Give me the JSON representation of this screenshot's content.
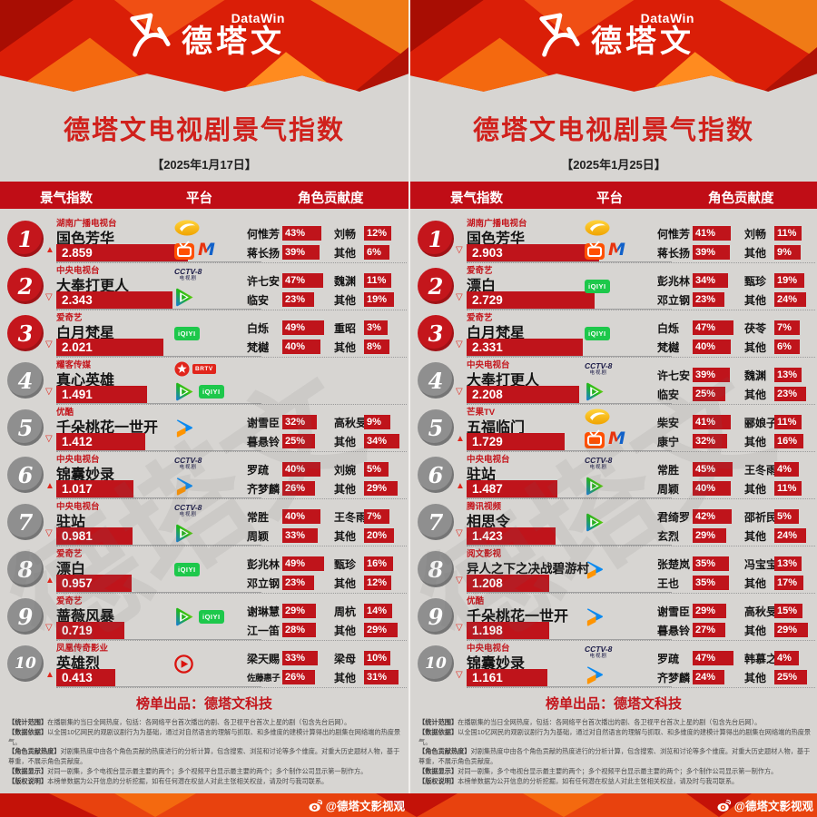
{
  "brand": {
    "name_en": "DataWin",
    "name_cn": "德塔文"
  },
  "shared": {
    "title": "德塔文电视剧景气指数",
    "columns": [
      "景气指数",
      "平台",
      "角色贡献度"
    ],
    "footer": "榜单出品：德塔文科技",
    "watermark": "德塔文",
    "fine_print": [
      {
        "label": "统计范围",
        "text": "在播剧集的当日全网热度，包括：各网络平台首次播出的剧、各卫视平台首次上星的剧（包含先台后网）。"
      },
      {
        "label": "数据依据",
        "text": "以全国10亿网民的观剧议剧行为为基础，通过对自然语言的理解与抓取、和多维度的建模计算得出的剧集在网络端的热度景气。"
      },
      {
        "label": "角色贡献热度",
        "text": "对剧集热度中由各个角色贡献的热度进行的分析计算，包含搜索、浏览和讨论等多个维度。对重大历史题材人物，基于尊重，不展示角色贡献度。"
      },
      {
        "label": "数据显示",
        "text": "对同一剧集，多个电视台显示最主要的两个；多个视频平台显示最主要的两个；多个制作公司显示第一制作方。"
      },
      {
        "label": "版权说明",
        "text": "本榜单数据为公开信息的分析挖掘，如有任何潜在权益人对此主张相关权益，请及时与我司联系。"
      }
    ]
  },
  "bottom_bar": {
    "label": "@德塔文影视观",
    "icon": "weibo-icon"
  },
  "colors": {
    "accent": "#c4161c",
    "bar": "#bf141b",
    "colhead": "#c00d16",
    "banner": "#da1e07",
    "band": "#e8420e",
    "rank-top": "#c4161c",
    "rank-gray": "#8f8f8f",
    "bg": "#d7d5d2",
    "title": "#d0211c"
  },
  "chart_data": [
    {
      "type": "table",
      "title": "德塔文电视剧景气指数",
      "date": "【2025年1月17日】",
      "columns": [
        "景气指数",
        "平台",
        "角色贡献度"
      ],
      "index_range": [
        0,
        3
      ],
      "rows": [
        {
          "rank": 1,
          "trend": "up",
          "network": "湖南广播电视台",
          "title": "国色芳华",
          "index": "2.859",
          "platform_lines": [
            [
              "hunan-tv"
            ],
            [
              "mgtv",
              "migu"
            ]
          ],
          "contributions": [
            {
              "name": "何惟芳",
              "pct": 43
            },
            {
              "name": "刘畅",
              "pct": 12
            },
            {
              "name": "蒋长扬",
              "pct": 39
            },
            {
              "name": "其他",
              "pct": 6
            }
          ]
        },
        {
          "rank": 2,
          "trend": "down",
          "network": "中央电视台",
          "title": "大奉打更人",
          "index": "2.343",
          "platform_lines": [
            [
              "cctv8"
            ],
            [
              "tencent-video"
            ]
          ],
          "contributions": [
            {
              "name": "许七安",
              "pct": 47
            },
            {
              "name": "魏渊",
              "pct": 11
            },
            {
              "name": "临安",
              "pct": 23
            },
            {
              "name": "其他",
              "pct": 19
            }
          ]
        },
        {
          "rank": 3,
          "trend": "down",
          "network": "爱奇艺",
          "title": "白月梵星",
          "index": "2.021",
          "platform_lines": [
            [
              "iqiyi"
            ]
          ],
          "contributions": [
            {
              "name": "白烁",
              "pct": 49
            },
            {
              "name": "重昭",
              "pct": 3
            },
            {
              "name": "梵樾",
              "pct": 40
            },
            {
              "name": "其他",
              "pct": 8
            }
          ]
        },
        {
          "rank": 4,
          "trend": "down",
          "network": "耀客传媒",
          "title": "真心英雄",
          "index": "1.491",
          "platform_lines": [
            [
              "brtv"
            ],
            [
              "tencent-video",
              "iqiyi"
            ]
          ],
          "contributions": []
        },
        {
          "rank": 5,
          "trend": "down",
          "network": "优酷",
          "title": "千朵桃花一世开",
          "index": "1.412",
          "platform_lines": [
            [
              "youku"
            ]
          ],
          "contributions": [
            {
              "name": "谢雪臣",
              "pct": 32
            },
            {
              "name": "高秋旻",
              "pct": 9
            },
            {
              "name": "暮悬铃",
              "pct": 25
            },
            {
              "name": "其他",
              "pct": 34
            }
          ]
        },
        {
          "rank": 6,
          "trend": "up",
          "network": "中央电视台",
          "title": "锦囊妙录",
          "index": "1.017",
          "platform_lines": [
            [
              "cctv8"
            ],
            [
              "youku"
            ]
          ],
          "contributions": [
            {
              "name": "罗疏",
              "pct": 40
            },
            {
              "name": "刘婉",
              "pct": 5
            },
            {
              "name": "齐梦麟",
              "pct": 26
            },
            {
              "name": "其他",
              "pct": 29
            }
          ]
        },
        {
          "rank": 7,
          "trend": "down",
          "network": "中央电视台",
          "title": "驻站",
          "index": "0.981",
          "platform_lines": [
            [
              "cctv8"
            ],
            [
              "tencent-video"
            ]
          ],
          "contributions": [
            {
              "name": "常胜",
              "pct": 40
            },
            {
              "name": "王冬雨",
              "pct": 7
            },
            {
              "name": "周颖",
              "pct": 33
            },
            {
              "name": "其他",
              "pct": 20
            }
          ]
        },
        {
          "rank": 8,
          "trend": "up",
          "network": "爱奇艺",
          "title": "漂白",
          "index": "0.957",
          "platform_lines": [
            [
              "iqiyi"
            ]
          ],
          "contributions": [
            {
              "name": "彭兆林",
              "pct": 49
            },
            {
              "name": "甄珍",
              "pct": 16
            },
            {
              "name": "邓立钢",
              "pct": 23
            },
            {
              "name": "其他",
              "pct": 12
            }
          ]
        },
        {
          "rank": 9,
          "trend": "down",
          "network": "爱奇艺",
          "title": "蔷薇风暴",
          "index": "0.719",
          "platform_lines": [
            [
              "tencent-video",
              "iqiyi"
            ]
          ],
          "contributions": [
            {
              "name": "谢琳慧",
              "pct": 29
            },
            {
              "name": "周杭",
              "pct": 14
            },
            {
              "name": "江一笛",
              "pct": 28
            },
            {
              "name": "其他",
              "pct": 29
            }
          ]
        },
        {
          "rank": 10,
          "trend": "up",
          "network": "凤凰传奇影业",
          "title": "英雄烈",
          "index": "0.413",
          "platform_lines": [
            [
              "red-play"
            ]
          ],
          "contributions": [
            {
              "name": "梁天赐",
              "pct": 33
            },
            {
              "name": "梁母",
              "pct": 10
            },
            {
              "name": "佐藤惠子",
              "pct": 26
            },
            {
              "name": "其他",
              "pct": 31
            }
          ]
        }
      ]
    },
    {
      "type": "table",
      "title": "德塔文电视剧景气指数",
      "date": "【2025年1月25日】",
      "columns": [
        "景气指数",
        "平台",
        "角色贡献度"
      ],
      "index_range": [
        0,
        3
      ],
      "rows": [
        {
          "rank": 1,
          "trend": "down",
          "network": "湖南广播电视台",
          "title": "国色芳华",
          "index": "2.903",
          "platform_lines": [
            [
              "hunan-tv"
            ],
            [
              "mgtv",
              "migu"
            ]
          ],
          "contributions": [
            {
              "name": "何惟芳",
              "pct": 41
            },
            {
              "name": "刘畅",
              "pct": 11
            },
            {
              "name": "蒋长扬",
              "pct": 39
            },
            {
              "name": "其他",
              "pct": 9
            }
          ]
        },
        {
          "rank": 2,
          "trend": "down",
          "network": "爱奇艺",
          "title": "漂白",
          "index": "2.729",
          "platform_lines": [
            [
              "iqiyi"
            ]
          ],
          "contributions": [
            {
              "name": "彭兆林",
              "pct": 34
            },
            {
              "name": "甄珍",
              "pct": 19
            },
            {
              "name": "邓立钢",
              "pct": 23
            },
            {
              "name": "其他",
              "pct": 24
            }
          ]
        },
        {
          "rank": 3,
          "trend": "down",
          "network": "爱奇艺",
          "title": "白月梵星",
          "index": "2.331",
          "platform_lines": [
            [
              "iqiyi"
            ]
          ],
          "contributions": [
            {
              "name": "白烁",
              "pct": 47
            },
            {
              "name": "茯苓",
              "pct": 7
            },
            {
              "name": "梵樾",
              "pct": 40
            },
            {
              "name": "其他",
              "pct": 6
            }
          ]
        },
        {
          "rank": 4,
          "trend": "down",
          "network": "中央电视台",
          "title": "大奉打更人",
          "index": "2.208",
          "platform_lines": [
            [
              "cctv8"
            ],
            [
              "tencent-video"
            ]
          ],
          "contributions": [
            {
              "name": "许七安",
              "pct": 39
            },
            {
              "name": "魏渊",
              "pct": 13
            },
            {
              "name": "临安",
              "pct": 25
            },
            {
              "name": "其他",
              "pct": 23
            }
          ]
        },
        {
          "rank": 5,
          "trend": "up",
          "network": "芒果TV",
          "title": "五福临门",
          "index": "1.729",
          "platform_lines": [
            [
              "hunan-tv"
            ],
            [
              "mgtv",
              "migu"
            ]
          ],
          "contributions": [
            {
              "name": "柴安",
              "pct": 41
            },
            {
              "name": "郦娘子",
              "pct": 11
            },
            {
              "name": "康宁",
              "pct": 32
            },
            {
              "name": "其他",
              "pct": 16
            }
          ]
        },
        {
          "rank": 6,
          "trend": "up",
          "network": "中央电视台",
          "title": "驻站",
          "index": "1.487",
          "platform_lines": [
            [
              "cctv8"
            ],
            [
              "tencent-video"
            ]
          ],
          "contributions": [
            {
              "name": "常胜",
              "pct": 45
            },
            {
              "name": "王冬雨",
              "pct": 4
            },
            {
              "name": "周颖",
              "pct": 40
            },
            {
              "name": "其他",
              "pct": 11
            }
          ]
        },
        {
          "rank": 7,
          "trend": "down",
          "network": "腾讯视频",
          "title": "相思令",
          "index": "1.423",
          "platform_lines": [
            [
              "tencent-video"
            ]
          ],
          "contributions": [
            {
              "name": "君绮罗",
              "pct": 42
            },
            {
              "name": "邵祈民",
              "pct": 5
            },
            {
              "name": "玄烈",
              "pct": 29
            },
            {
              "name": "其他",
              "pct": 24
            }
          ]
        },
        {
          "rank": 8,
          "trend": "down",
          "network": "阅文影视",
          "title": "异人之下之决战碧游村",
          "index": "1.208",
          "platform_lines": [
            [
              "youku"
            ]
          ],
          "contributions": [
            {
              "name": "张楚岚",
              "pct": 35
            },
            {
              "name": "冯宝宝",
              "pct": 13
            },
            {
              "name": "王也",
              "pct": 35
            },
            {
              "name": "其他",
              "pct": 17
            }
          ]
        },
        {
          "rank": 9,
          "trend": "down",
          "network": "优酷",
          "title": "千朵桃花一世开",
          "index": "1.198",
          "platform_lines": [
            [
              "youku"
            ]
          ],
          "contributions": [
            {
              "name": "谢雪臣",
              "pct": 29
            },
            {
              "name": "高秋旻",
              "pct": 15
            },
            {
              "name": "暮悬铃",
              "pct": 27
            },
            {
              "name": "其他",
              "pct": 29
            }
          ]
        },
        {
          "rank": 10,
          "trend": "down",
          "network": "中央电视台",
          "title": "锦囊妙录",
          "index": "1.161",
          "platform_lines": [
            [
              "cctv8"
            ],
            [
              "youku"
            ]
          ],
          "contributions": [
            {
              "name": "罗疏",
              "pct": 47
            },
            {
              "name": "韩慕之",
              "pct": 4
            },
            {
              "name": "齐梦麟",
              "pct": 24
            },
            {
              "name": "其他",
              "pct": 25
            }
          ]
        }
      ]
    }
  ]
}
